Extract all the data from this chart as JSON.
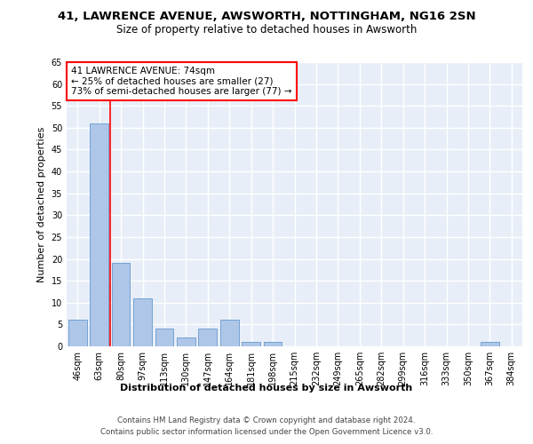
{
  "title1": "41, LAWRENCE AVENUE, AWSWORTH, NOTTINGHAM, NG16 2SN",
  "title2": "Size of property relative to detached houses in Awsworth",
  "xlabel": "Distribution of detached houses by size in Awsworth",
  "ylabel": "Number of detached properties",
  "categories": [
    "46sqm",
    "63sqm",
    "80sqm",
    "97sqm",
    "113sqm",
    "130sqm",
    "147sqm",
    "164sqm",
    "181sqm",
    "198sqm",
    "215sqm",
    "232sqm",
    "249sqm",
    "265sqm",
    "282sqm",
    "299sqm",
    "316sqm",
    "333sqm",
    "350sqm",
    "367sqm",
    "384sqm"
  ],
  "values": [
    6,
    51,
    19,
    11,
    4,
    2,
    4,
    6,
    1,
    1,
    0,
    0,
    0,
    0,
    0,
    0,
    0,
    0,
    0,
    1,
    0
  ],
  "bar_color": "#aec6e8",
  "bar_edge_color": "#6699cc",
  "red_line_x": 1.5,
  "annotation_title": "41 LAWRENCE AVENUE: 74sqm",
  "annotation_line1": "← 25% of detached houses are smaller (27)",
  "annotation_line2": "73% of semi-detached houses are larger (77) →",
  "footer1": "Contains HM Land Registry data © Crown copyright and database right 2024.",
  "footer2": "Contains public sector information licensed under the Open Government Licence v3.0.",
  "ylim": [
    0,
    65
  ],
  "yticks": [
    0,
    5,
    10,
    15,
    20,
    25,
    30,
    35,
    40,
    45,
    50,
    55,
    60,
    65
  ],
  "background_color": "#e8eef8",
  "grid_color": "#ffffff",
  "title1_fontsize": 9.5,
  "title2_fontsize": 8.5,
  "tick_fontsize": 7,
  "ylabel_fontsize": 8,
  "xlabel_fontsize": 8,
  "ann_fontsize": 7.5
}
